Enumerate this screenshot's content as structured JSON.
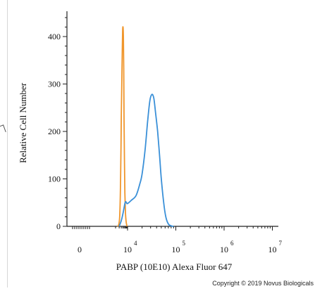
{
  "chart_data": {
    "type": "line",
    "xlabel": "PABP (10E10) Alexa Fluor 647",
    "ylabel": "Relative Cell Number",
    "ylim": [
      0,
      450
    ],
    "x_scale": "biexponential",
    "x_ticks": [
      {
        "value": 0,
        "base": "0",
        "exp": ""
      },
      {
        "value": 10000,
        "base": "10",
        "exp": "4"
      },
      {
        "value": 100000,
        "base": "10",
        "exp": "5"
      },
      {
        "value": 1000000,
        "base": "10",
        "exp": "6"
      },
      {
        "value": 10000000,
        "base": "10",
        "exp": "7"
      }
    ],
    "y_ticks": [
      0,
      100,
      200,
      300,
      400
    ],
    "grid": false,
    "series": [
      {
        "color": "#f0962c",
        "x": [
          1400,
          1900,
          2300,
          2700,
          3000,
          3300,
          3600,
          3900,
          4200,
          4500,
          4800,
          5100,
          5500,
          6000,
          6700,
          7600,
          9000
        ],
        "y": [
          0,
          5,
          30,
          120,
          230,
          300,
          370,
          412,
          420,
          400,
          330,
          230,
          140,
          70,
          30,
          10,
          0
        ]
      },
      {
        "color": "#3a90d8",
        "x": [
          2000,
          3000,
          4000,
          5000,
          6000,
          7000,
          8000,
          10000,
          12000,
          15000,
          18000,
          20000,
          23000,
          26000,
          29000,
          32000,
          35000,
          38000,
          42000,
          46000,
          50000,
          56000,
          62000,
          70000,
          80000,
          90000
        ],
        "y": [
          0,
          12,
          25,
          38,
          48,
          52,
          50,
          48,
          55,
          65,
          90,
          110,
          160,
          220,
          265,
          278,
          270,
          240,
          200,
          150,
          100,
          50,
          20,
          5,
          1,
          0
        ]
      }
    ]
  },
  "copyright": "Copyright © 2019 Novus Biologicals"
}
